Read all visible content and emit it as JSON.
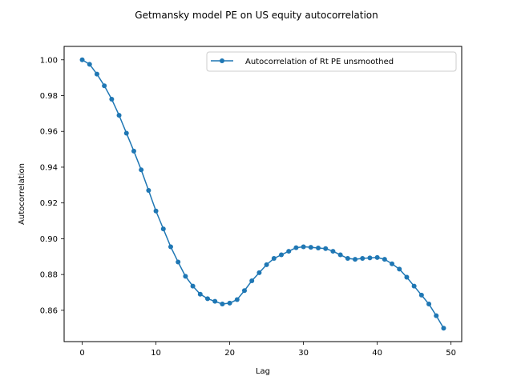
{
  "chart_data": {
    "type": "line",
    "title": "Getmansky model PE on US equity autocorrelation",
    "xlabel": "Lag",
    "ylabel": "Autocorrelation",
    "xlim": [
      -2.45,
      51.45
    ],
    "ylim": [
      0.8425,
      1.0075
    ],
    "xticks": [
      0,
      10,
      20,
      30,
      40,
      50
    ],
    "xtick_labels": [
      "0",
      "10",
      "20",
      "30",
      "40",
      "50"
    ],
    "yticks": [
      0.86,
      0.88,
      0.9,
      0.92,
      0.94,
      0.96,
      0.98,
      1.0
    ],
    "ytick_labels": [
      "0.86",
      "0.88",
      "0.90",
      "0.92",
      "0.94",
      "0.96",
      "0.98",
      "1.00"
    ],
    "grid": false,
    "legend": "upper right",
    "series": [
      {
        "name": "Autocorrelation of Rt PE unsmoothed",
        "color": "#1f77b4",
        "marker": "circle",
        "x": [
          0,
          1,
          2,
          3,
          4,
          5,
          6,
          7,
          8,
          9,
          10,
          11,
          12,
          13,
          14,
          15,
          16,
          17,
          18,
          19,
          20,
          21,
          22,
          23,
          24,
          25,
          26,
          27,
          28,
          29,
          30,
          31,
          32,
          33,
          34,
          35,
          36,
          37,
          38,
          39,
          40,
          41,
          42,
          43,
          44,
          45,
          46,
          47,
          48,
          49
        ],
        "y": [
          1.0,
          0.9975,
          0.992,
          0.9855,
          0.978,
          0.969,
          0.959,
          0.949,
          0.9385,
          0.927,
          0.9155,
          0.9055,
          0.8955,
          0.887,
          0.879,
          0.8735,
          0.869,
          0.8665,
          0.865,
          0.8635,
          0.864,
          0.866,
          0.871,
          0.8765,
          0.881,
          0.8855,
          0.889,
          0.891,
          0.893,
          0.895,
          0.8955,
          0.8952,
          0.8948,
          0.8945,
          0.893,
          0.891,
          0.889,
          0.8885,
          0.889,
          0.8893,
          0.8895,
          0.8885,
          0.886,
          0.883,
          0.8785,
          0.8735,
          0.8685,
          0.8635,
          0.857,
          0.85
        ]
      }
    ]
  }
}
